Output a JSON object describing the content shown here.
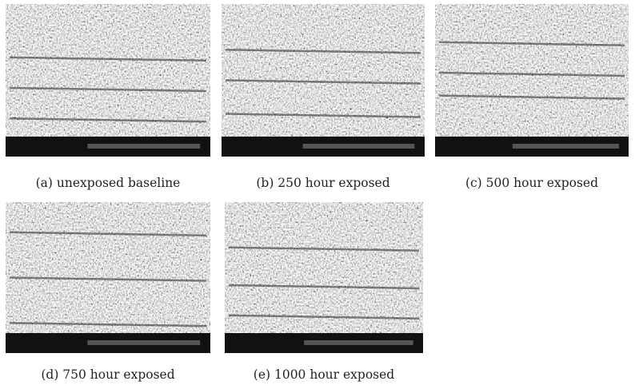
{
  "panels": [
    {
      "caption": "(a) unexposed baseline"
    },
    {
      "caption": "(b) 250 hour exposed"
    },
    {
      "caption": "(c) 500 hour exposed"
    },
    {
      "caption": "(d) 750 hour exposed"
    },
    {
      "caption": "(e) 1000 hour exposed"
    }
  ]
}
